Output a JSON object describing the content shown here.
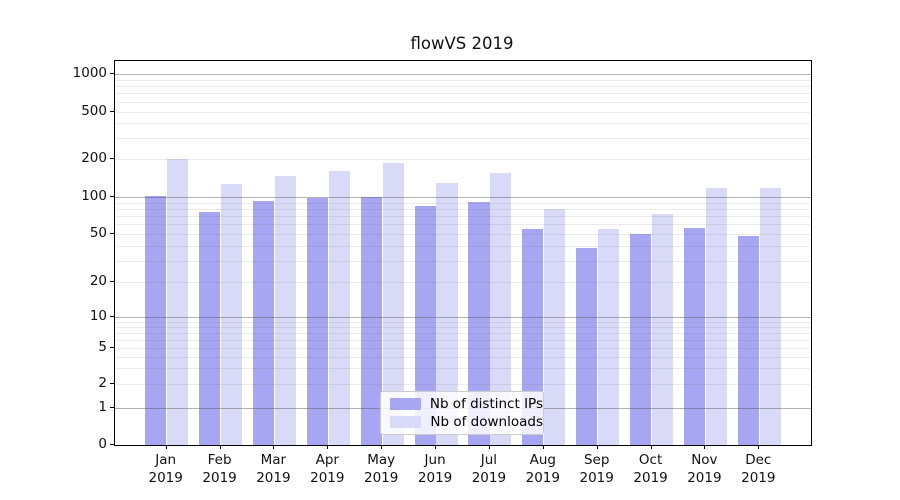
{
  "chart_data": {
    "type": "bar",
    "title": "flowVS 2019",
    "categories": [
      "Jan",
      "Feb",
      "Mar",
      "Apr",
      "May",
      "Jun",
      "Jul",
      "Aug",
      "Sep",
      "Oct",
      "Nov",
      "Dec"
    ],
    "year": "2019",
    "series": [
      {
        "name": "Nb of distinct IPs",
        "color": "#a6a6f2",
        "values": [
          102,
          76,
          92,
          98,
          100,
          85,
          91,
          55,
          38,
          50,
          56,
          48
        ]
      },
      {
        "name": "Nb of downloads",
        "color": "#d9d9f8",
        "values": [
          200,
          128,
          147,
          162,
          186,
          130,
          157,
          80,
          55,
          73,
          119,
          119
        ]
      }
    ],
    "xlabel": "",
    "ylabel": "",
    "y_ticks": [
      0,
      1,
      2,
      5,
      10,
      20,
      50,
      100,
      200,
      500,
      1000
    ],
    "y_tick_labels": [
      "0",
      "1",
      "2",
      "5",
      "10",
      "20",
      "50",
      "100",
      "200",
      "500",
      "1000"
    ],
    "y_scale": "symlog",
    "ylim": [
      0,
      1300
    ],
    "grid": true,
    "legend_position": "lower center inside"
  },
  "colors": {
    "background": "#ffffff",
    "axis": "#000000",
    "major_grid": "#b5b5b5",
    "minor_grid": "#e5e5e5"
  }
}
